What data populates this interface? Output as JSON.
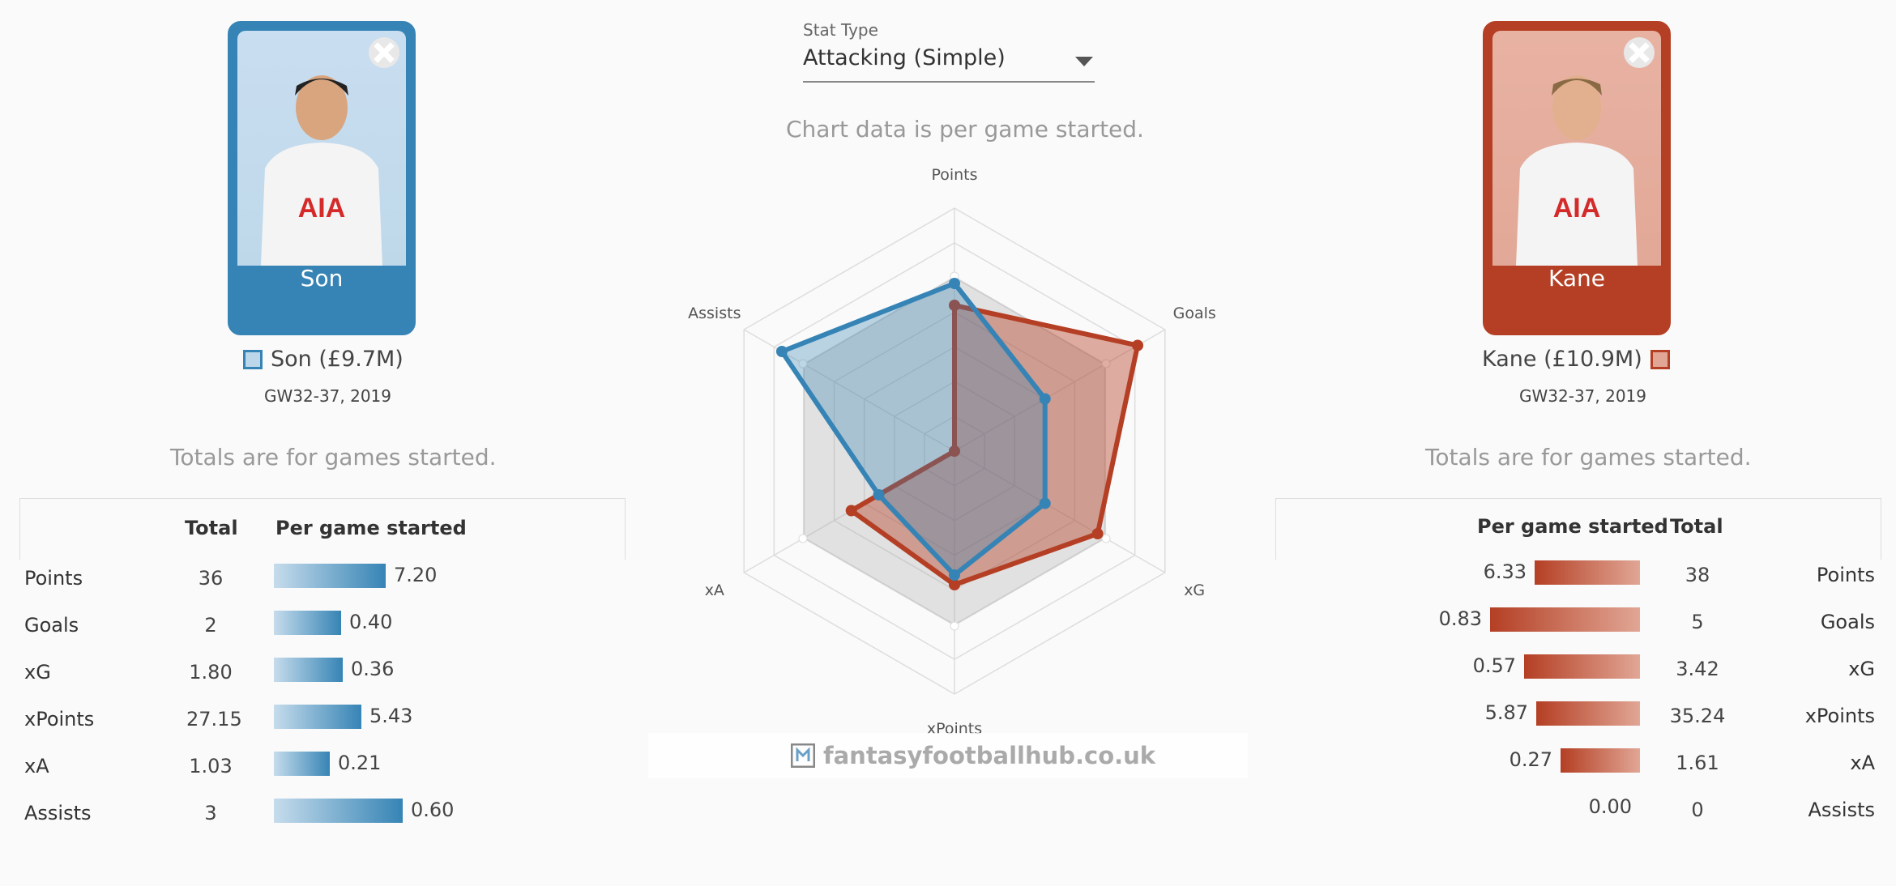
{
  "players": [
    {
      "card_name": "Son",
      "legend": "Son (£9.7M)",
      "gw": "GW32-37, 2019",
      "color": "#3684b5"
    },
    {
      "card_name": "Kane",
      "legend": "Kane (£10.9M)",
      "gw": "GW32-37, 2019",
      "color": "#b43f24"
    }
  ],
  "stat_type": {
    "label": "Stat Type",
    "value": "Attacking (Simple)"
  },
  "chart_note": "Chart data is per game started.",
  "totals_note": "Totals are for games started.",
  "watermark": "fantasyfootballhub.co.uk",
  "left_table": {
    "headers": [
      "Total",
      "Per game started"
    ],
    "rows": [
      {
        "label": "Points",
        "total": "36",
        "per": "7.20",
        "frac": 0.6
      },
      {
        "label": "Goals",
        "total": "2",
        "per": "0.40",
        "frac": 0.36
      },
      {
        "label": "xG",
        "total": "1.80",
        "per": "0.36",
        "frac": 0.37
      },
      {
        "label": "xPoints",
        "total": "27.15",
        "per": "5.43",
        "frac": 0.47
      },
      {
        "label": "xA",
        "total": "1.03",
        "per": "0.21",
        "frac": 0.3
      },
      {
        "label": "Assists",
        "total": "3",
        "per": "0.60",
        "frac": 0.69
      }
    ]
  },
  "right_table": {
    "headers": [
      "Per game started",
      "Total"
    ],
    "rows": [
      {
        "label": "Points",
        "total": "38",
        "per": "6.33",
        "frac": 0.52
      },
      {
        "label": "Goals",
        "total": "5",
        "per": "0.83",
        "frac": 0.74
      },
      {
        "label": "xG",
        "total": "3.42",
        "per": "0.57",
        "frac": 0.57
      },
      {
        "label": "xPoints",
        "total": "35.24",
        "per": "5.87",
        "frac": 0.51
      },
      {
        "label": "xA",
        "total": "1.61",
        "per": "0.27",
        "frac": 0.39
      },
      {
        "label": "Assists",
        "total": "0",
        "per": "0.00",
        "frac": 0
      }
    ]
  },
  "chart_data": {
    "type": "radar",
    "axes": [
      "Points",
      "Goals",
      "xG",
      "xPoints",
      "xA",
      "Assists"
    ],
    "range": [
      0,
      1
    ],
    "series": [
      {
        "name": "Son (£9.7M)",
        "color": "#3684b5",
        "values": [
          0.69,
          0.43,
          0.43,
          0.51,
          0.36,
          0.82
        ]
      },
      {
        "name": "Kane (£10.9M)",
        "color": "#b43f24",
        "values": [
          0.6,
          0.87,
          0.68,
          0.55,
          0.49,
          0.0
        ]
      },
      {
        "name": "",
        "color": "#999999",
        "values": [
          0.72,
          0.72,
          0.72,
          0.72,
          0.72,
          0.72
        ]
      }
    ]
  }
}
